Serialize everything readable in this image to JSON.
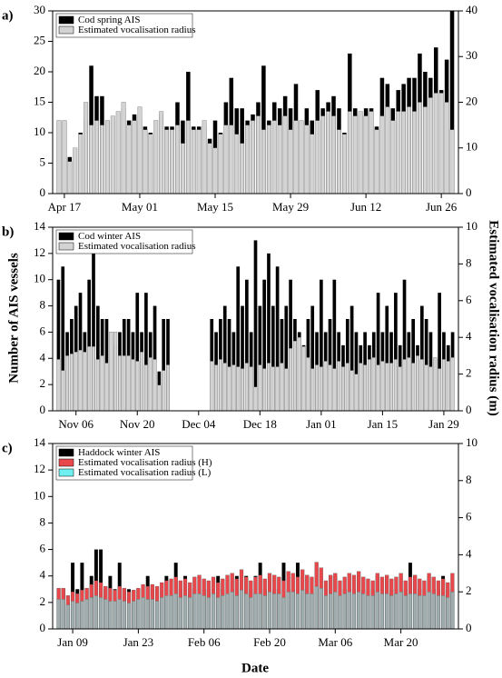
{
  "y_label": "Number of AIS vessels",
  "y2_label": "Estimated vocalisation radius (m)",
  "x_label": "Date",
  "chart_data": [
    {
      "type": "bar",
      "panel": "a)",
      "legend": "upper left",
      "categories": [
        null,
        "Apr 17",
        null,
        null,
        null,
        null,
        null,
        null,
        null,
        null,
        null,
        null,
        null,
        null,
        null,
        "May 01",
        null,
        null,
        null,
        null,
        null,
        null,
        null,
        null,
        null,
        null,
        null,
        null,
        null,
        "May 15",
        null,
        null,
        null,
        null,
        null,
        null,
        null,
        null,
        null,
        null,
        null,
        null,
        null,
        "May 29",
        null,
        null,
        null,
        null,
        null,
        null,
        null,
        null,
        null,
        null,
        null,
        null,
        null,
        "Jun 12",
        null,
        null,
        null,
        null,
        null,
        null,
        null,
        null,
        null,
        null,
        null,
        null,
        null,
        "Jun 26",
        null,
        null
      ],
      "series": [
        {
          "name": "Cod spring AIS",
          "color": "#000000",
          "axis": "y",
          "values": [
            12,
            12,
            6,
            7,
            10,
            12,
            21,
            16,
            16,
            12,
            12,
            13,
            14,
            12,
            13,
            12,
            11,
            10,
            12,
            13,
            11,
            11,
            15,
            12,
            20,
            11,
            11,
            11,
            9,
            12,
            10,
            15,
            19,
            14,
            14,
            12,
            13,
            15,
            21,
            12,
            15,
            14,
            16,
            14,
            18,
            12,
            14,
            12,
            17,
            14,
            15,
            16,
            14,
            10,
            23,
            14,
            13,
            14,
            14,
            11,
            19,
            18,
            14,
            17,
            18,
            19,
            19,
            23,
            20,
            19,
            24,
            17,
            22,
            30
          ]
        },
        {
          "name": "Estimated vocalisation radius",
          "color": "#d3d3d3",
          "axis": "y2",
          "values": [
            16,
            16,
            7,
            10,
            13,
            20,
            15,
            16,
            15,
            16,
            17,
            18,
            20,
            15,
            16,
            19,
            14,
            13,
            16,
            18,
            14,
            14,
            15,
            11,
            16,
            14,
            14,
            16,
            11,
            10,
            13,
            15,
            15,
            13,
            11,
            15,
            16,
            17,
            14,
            15,
            16,
            15,
            17,
            14,
            16,
            16,
            15,
            13,
            16,
            17,
            18,
            17,
            14,
            13,
            18,
            17,
            18,
            17,
            18,
            14,
            17,
            19,
            16,
            18,
            18,
            19,
            18,
            20,
            19,
            21,
            22,
            22,
            20,
            14
          ]
        }
      ],
      "ylim": [
        0,
        30
      ],
      "yticks": [
        0,
        5,
        10,
        15,
        20,
        25,
        30
      ],
      "y2lim": [
        0,
        40
      ],
      "y2ticks": [
        0,
        10,
        20,
        30,
        40
      ]
    },
    {
      "type": "bar",
      "panel": "b)",
      "legend": "upper left",
      "categories": [
        null,
        null,
        null,
        null,
        "Nov 06",
        null,
        null,
        null,
        null,
        null,
        null,
        null,
        null,
        null,
        null,
        null,
        null,
        null,
        "Nov 20",
        null,
        null,
        null,
        null,
        null,
        null,
        null,
        null,
        null,
        null,
        null,
        null,
        null,
        "Dec 04",
        null,
        null,
        null,
        null,
        null,
        null,
        null,
        null,
        null,
        null,
        null,
        null,
        null,
        "Dec 18",
        null,
        null,
        null,
        null,
        null,
        null,
        null,
        null,
        null,
        null,
        null,
        null,
        null,
        "Jan 01",
        null,
        null,
        null,
        null,
        null,
        null,
        null,
        null,
        null,
        null,
        null,
        null,
        null,
        "Jan 15",
        null,
        null,
        null,
        null,
        null,
        null,
        null,
        null,
        null,
        null,
        null,
        null,
        null,
        "Jan 29",
        null,
        null
      ],
      "series": [
        {
          "name": "Cod winter AIS",
          "color": "#000000",
          "axis": "y",
          "values": [
            10,
            11,
            6,
            7,
            8,
            9,
            6,
            10,
            12,
            8,
            7,
            7,
            6,
            5,
            6,
            7,
            7,
            6,
            9,
            6,
            9,
            6,
            8,
            3,
            7,
            7,
            0,
            0,
            0,
            0,
            0,
            0,
            0,
            0,
            0,
            7,
            6,
            7,
            8,
            7,
            6,
            11,
            8,
            10,
            6,
            13,
            8,
            10,
            12,
            8,
            11,
            7,
            8,
            10,
            7,
            6,
            5,
            7,
            8,
            6,
            10,
            6,
            7,
            10,
            6,
            5,
            7,
            8,
            6,
            5,
            6,
            5,
            6,
            9,
            6,
            8,
            6,
            9,
            5,
            10,
            6,
            7,
            5,
            8,
            7,
            6,
            4,
            9,
            6,
            5,
            6
          ]
        },
        {
          "name": "Estimated vocalisation radius",
          "color": "#d3d3d3",
          "axis": "y2",
          "values": [
            2.8,
            2.2,
            3,
            3.1,
            3.2,
            3.3,
            3.2,
            3.5,
            3.5,
            2.8,
            3,
            2.6,
            4.3,
            4.3,
            3,
            3,
            3,
            2.8,
            2.7,
            3.2,
            2.5,
            2.9,
            2.8,
            1.4,
            2.2,
            2.5,
            0,
            0,
            0,
            0,
            0,
            0,
            0,
            0,
            0,
            2.7,
            2.5,
            2.8,
            2.6,
            2.4,
            2.5,
            2.4,
            2.3,
            2.6,
            2.4,
            1.3,
            2.5,
            2.3,
            2.6,
            2.4,
            2.4,
            2.6,
            2.3,
            3.4,
            3.8,
            4,
            3.5,
            2.9,
            2.3,
            2.5,
            2.4,
            2.7,
            2.5,
            2.3,
            2.7,
            2.4,
            2.6,
            2.2,
            2,
            2.6,
            2.5,
            2.8,
            2.9,
            2.5,
            2.7,
            2.6,
            2.6,
            2.8,
            2.4,
            2.8,
            2.9,
            2.6,
            3,
            2.8,
            2.5,
            2.4,
            2.9,
            2.3,
            2.8,
            2.7,
            2.9
          ]
        }
      ],
      "ylim": [
        0,
        14
      ],
      "yticks": [
        0,
        2,
        4,
        6,
        8,
        10,
        12,
        14
      ],
      "y2lim": [
        0,
        10
      ],
      "y2ticks": [
        0,
        2,
        4,
        6,
        8,
        10
      ]
    },
    {
      "type": "bar",
      "panel": "c)",
      "legend": "upper left",
      "categories": [
        null,
        null,
        null,
        "Jan 09",
        null,
        null,
        null,
        null,
        null,
        null,
        null,
        null,
        null,
        null,
        null,
        null,
        null,
        "Jan 23",
        null,
        null,
        null,
        null,
        null,
        null,
        null,
        null,
        null,
        null,
        null,
        null,
        null,
        "Feb 06",
        null,
        null,
        null,
        null,
        null,
        null,
        null,
        null,
        null,
        null,
        null,
        null,
        null,
        "Feb 20",
        null,
        null,
        null,
        null,
        null,
        null,
        null,
        null,
        null,
        null,
        null,
        null,
        null,
        "Mar 06",
        null,
        null,
        null,
        null,
        null,
        null,
        null,
        null,
        null,
        null,
        null,
        null,
        null,
        "Mar 20",
        null,
        null,
        null,
        null,
        null,
        null,
        null,
        null,
        null,
        null,
        null
      ],
      "series": [
        {
          "name": "Haddock winter AIS",
          "color": "#000000",
          "axis": "y",
          "values": [
            3,
            3,
            2,
            5,
            3,
            5,
            3,
            4,
            6,
            6,
            3,
            4,
            3,
            5,
            3,
            3,
            2,
            3,
            3,
            4,
            3,
            3,
            2,
            4,
            3,
            5,
            3,
            4,
            3,
            3,
            4,
            3,
            3,
            3,
            4,
            3,
            4,
            3,
            4,
            3,
            4,
            3,
            4,
            5,
            3,
            4,
            3,
            3,
            5,
            3,
            3,
            5,
            3,
            4,
            3,
            3,
            3,
            3,
            4,
            4,
            3,
            3,
            3,
            3,
            4,
            3,
            3,
            3,
            4,
            3,
            4,
            3,
            3,
            4,
            3,
            5,
            4,
            3,
            3,
            4,
            3,
            3,
            4,
            3,
            3
          ]
        },
        {
          "name": "Estimated vocalisation radius (H)",
          "color": "#e8474b",
          "axis": "y2",
          "values": [
            2.2,
            2.2,
            1.8,
            2,
            1.9,
            2.1,
            2.2,
            2.4,
            2.6,
            2.5,
            2.3,
            2.2,
            2.1,
            2.3,
            2.2,
            2,
            2.1,
            2.2,
            2.4,
            2.3,
            2.4,
            2.3,
            2.5,
            2.6,
            2.7,
            2.8,
            2.6,
            2.7,
            2.5,
            2.8,
            2.9,
            2.7,
            2.6,
            2.8,
            2.5,
            2.7,
            2.9,
            3,
            2.7,
            3.2,
            2.8,
            2.6,
            2.8,
            2.9,
            2.7,
            3,
            2.9,
            2.8,
            2.6,
            3.1,
            3,
            2.8,
            3.2,
            2.9,
            2.8,
            3.6,
            3.3,
            2.6,
            2.9,
            3,
            2.6,
            2.8,
            3,
            2.9,
            3.1,
            2.8,
            2.7,
            2.6,
            3,
            2.8,
            2.9,
            2.7,
            2.8,
            3,
            2.6,
            2.8,
            2.9,
            2.7,
            2.6,
            3,
            2.8,
            2.6,
            2.7,
            2.5,
            3
          ]
        },
        {
          "name": "Estimated vocalisation radius (L)",
          "color": "#6ff0f0",
          "axis": "y2",
          "values": [
            1.6,
            1.6,
            1.3,
            1.5,
            1.4,
            1.5,
            1.6,
            1.7,
            1.8,
            1.7,
            1.6,
            1.5,
            1.5,
            1.6,
            1.5,
            1.4,
            1.5,
            1.6,
            1.7,
            1.6,
            1.6,
            1.5,
            1.7,
            1.8,
            1.8,
            1.9,
            1.7,
            1.8,
            1.7,
            1.9,
            1.9,
            1.8,
            1.7,
            1.9,
            1.7,
            1.8,
            1.9,
            2,
            1.8,
            2.1,
            1.9,
            1.7,
            1.9,
            1.9,
            1.8,
            2,
            1.9,
            1.9,
            1.7,
            2,
            2,
            1.9,
            2.1,
            1.9,
            1.9,
            2.3,
            2.2,
            1.8,
            1.9,
            2,
            1.8,
            1.9,
            2,
            1.9,
            2,
            1.9,
            1.8,
            1.8,
            2,
            1.9,
            1.9,
            1.8,
            1.9,
            2,
            1.8,
            1.9,
            1.9,
            1.8,
            1.8,
            2,
            1.9,
            1.8,
            1.8,
            1.7,
            2
          ]
        }
      ],
      "ylim": [
        0,
        14
      ],
      "yticks": [
        0,
        2,
        4,
        6,
        8,
        10,
        12,
        14
      ],
      "y2lim": [
        0,
        10
      ],
      "y2ticks": [
        0,
        2,
        4,
        6,
        8,
        10
      ]
    }
  ]
}
